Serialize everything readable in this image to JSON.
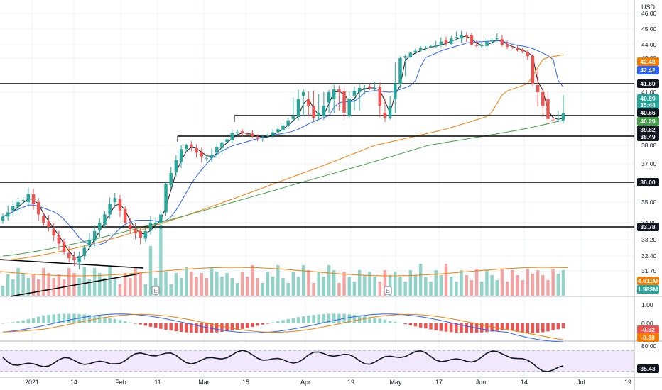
{
  "currency": "USD",
  "colors": {
    "up": "#26a69a",
    "down": "#ef5350",
    "vol_up": "#8fd3c9",
    "vol_down": "#f3a3a1",
    "ma_fast": "#131722",
    "ma_mid": "#2962ff",
    "ma_50": "#f57c00",
    "ma_200": "#43a047",
    "macd": "#2962ff",
    "signal": "#f57c00",
    "rsi": "#131722",
    "rsi_band": "#f1e9fb",
    "grid": "#f0f3fa",
    "axis_text": "#131722"
  },
  "price_axis_ticks": [
    "46.00",
    "45.00",
    "44.00",
    "42.00",
    "41.00",
    "38.00",
    "37.00",
    "35.00",
    "34.00",
    "33.20",
    "32.40",
    "31.70"
  ],
  "macd_axis_ticks": [
    "1.00",
    "0.00"
  ],
  "rsi_axis_ticks": [
    "80.00"
  ],
  "time_axis_labels": [
    "2021",
    "14",
    "Feb",
    "11",
    "Mar",
    "15",
    "Apr",
    "19",
    "May",
    "17",
    "Jun",
    "14",
    "Jul",
    "19"
  ],
  "badges": {
    "b1": {
      "text": "42.48",
      "color": "#f57c00"
    },
    "b2": {
      "text": "42.42",
      "color": "#2962ff"
    },
    "b3": {
      "text": "41.60",
      "color": "#131722"
    },
    "b4": {
      "text": "40.69",
      "color": "#26a69a"
    },
    "b4b": {
      "text": "35:44",
      "color": "#26a69a"
    },
    "b5": {
      "text": "40.66",
      "color": "#131722"
    },
    "b6": {
      "text": "40.29",
      "color": "#43a047"
    },
    "b7": {
      "text": "39.62",
      "color": "#131722"
    },
    "b8": {
      "text": "38.49",
      "color": "#131722"
    },
    "b9": {
      "text": "36.00",
      "color": "#131722"
    },
    "b10": {
      "text": "33.78",
      "color": "#131722"
    },
    "b11": {
      "text": "4.611M",
      "color": "#f57c00"
    },
    "b12": {
      "text": "1.983M",
      "color": "#26a69a"
    },
    "b13": {
      "text": "-0.32",
      "color": "#ef5350"
    },
    "b14": {
      "text": "-0.38",
      "color": "#f57c00"
    },
    "b15": {
      "text": "35.43",
      "color": "#131722"
    }
  },
  "chart_data": {
    "type": "candlestick",
    "symbol_currency": "USD",
    "period": "Dec 2020 – Jun 2021 (daily)",
    "horizontal_levels": [
      41.6,
      40.66,
      39.62,
      38.49,
      36.0,
      33.78
    ],
    "closes": [
      34.3,
      34.5,
      34.8,
      35.0,
      35.1,
      35.4,
      34.9,
      34.4,
      34.0,
      33.8,
      33.4,
      33.0,
      32.6,
      32.3,
      32.2,
      32.4,
      32.8,
      33.2,
      33.6,
      34.0,
      34.4,
      34.9,
      35.2,
      34.6,
      34.0,
      33.7,
      33.5,
      33.3,
      33.6,
      34.0,
      34.0,
      34.4,
      35.9,
      36.5,
      37.2,
      37.8,
      38.0,
      37.9,
      37.6,
      37.4,
      37.3,
      37.5,
      37.9,
      38.3,
      38.6,
      39.2,
      39.3,
      39.2,
      39.1,
      38.9,
      38.7,
      38.8,
      39.0,
      39.3,
      39.6,
      39.9,
      40.3,
      40.6,
      40.9,
      41.0,
      40.8,
      40.5,
      40.7,
      40.8,
      41.0,
      41.2,
      41.0,
      40.7,
      40.9,
      41.1,
      41.3,
      41.3,
      41.3,
      41.3,
      40.8,
      40.5,
      40.8,
      41.6,
      42.0,
      42.3,
      42.8,
      43.1,
      43.5,
      43.6,
      43.8,
      43.9,
      44.2,
      44.1,
      44.4,
      44.5,
      44.6,
      44.5,
      44.0,
      43.8,
      43.9,
      44.2,
      44.3,
      44.4,
      44.0,
      43.7,
      43.5,
      43.2,
      43.0,
      42.3,
      41.6,
      41.0,
      40.8,
      40.4,
      40.3,
      40.4,
      40.69
    ],
    "ma_200_end": 40.29,
    "ma_50_end": 42.48,
    "ma_20_end": 42.42,
    "volume_labels": [
      "4.611M",
      "1.983M"
    ],
    "macd_last": -0.32,
    "signal_last": -0.38,
    "rsi_last": 35.43
  }
}
